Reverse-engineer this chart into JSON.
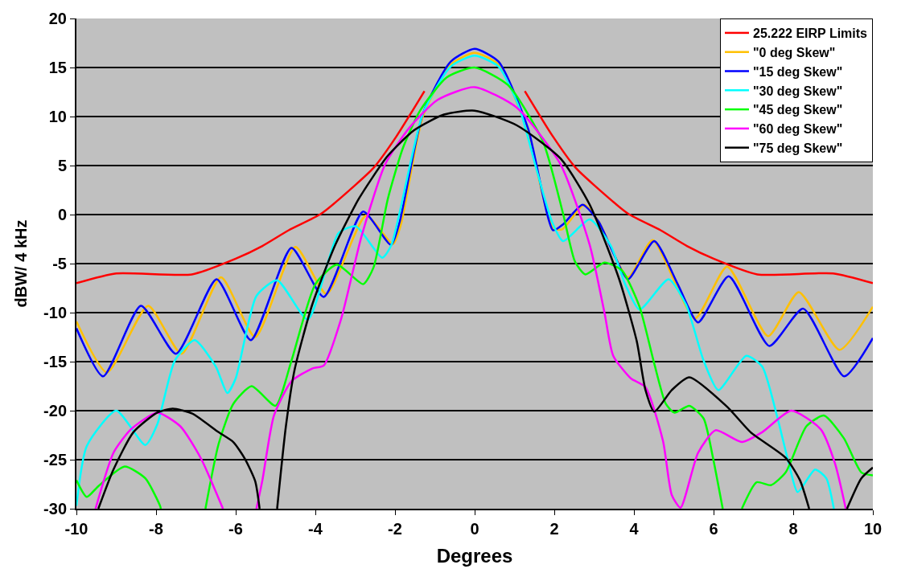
{
  "chart_data": {
    "type": "line",
    "xlabel": "Degrees",
    "ylabel": "dBW/ 4 kHz",
    "xlim": [
      -10,
      10
    ],
    "xticks": [
      -10,
      -8,
      -6,
      -4,
      -2,
      0,
      2,
      4,
      6,
      8,
      10
    ],
    "ylim": [
      -30,
      20
    ],
    "yticks": [
      -30,
      -25,
      -20,
      -15,
      -10,
      -5,
      0,
      5,
      10,
      15,
      20
    ],
    "grid": "y",
    "legend": "top right",
    "marker": "none",
    "line_style": "solid",
    "series": [
      {
        "name": "25.222 EIRP Limits",
        "color": "#ff0000",
        "x": [
          -10,
          -9,
          -7.1,
          -6,
          -5.33,
          -4.67,
          -3.85,
          -3,
          -2.53,
          -1.96,
          -1.26,
          0,
          1.26,
          1.96,
          2.53,
          3,
          3.85,
          4.67,
          5.33,
          6,
          7.1,
          9,
          10
        ],
        "values": [
          -7,
          -6,
          -6.1,
          -4.5,
          -3.2,
          -1.6,
          0.1,
          3.0,
          4.8,
          8.0,
          12.6,
          null,
          12.6,
          8.0,
          4.8,
          3.0,
          0.1,
          -1.6,
          -3.2,
          -4.5,
          -6.1,
          -6,
          -7
        ]
      },
      {
        "name": "\"0 deg Skew\"",
        "color": "#ffc000",
        "x": [
          -10,
          -9.23,
          -8.2,
          -7.36,
          -6.37,
          -5.51,
          -4.5,
          -3.72,
          -2.73,
          -2.05,
          -1.85,
          -1.3,
          -0.6,
          0,
          0.6,
          1.3,
          1.97,
          2.2,
          2.75,
          3.1,
          3.85,
          4.47,
          5.53,
          6.34,
          7.37,
          8.14,
          9.16,
          10
        ],
        "values": [
          -10.9,
          -16.1,
          -9.3,
          -14.2,
          -6.4,
          -12.5,
          -3.3,
          -8.1,
          -0.1,
          -3.0,
          -1.0,
          10.0,
          15.3,
          16.5,
          15.3,
          8.8,
          -1.4,
          -1.5,
          1.0,
          -0.6,
          -6.4,
          -2.6,
          -10.6,
          -5.3,
          -12.4,
          -7.9,
          -13.8,
          -9.4
        ]
      },
      {
        "name": "\"15 deg Skew\"",
        "color": "#0000ff",
        "x": [
          -10,
          -9.33,
          -8.38,
          -7.5,
          -6.48,
          -5.62,
          -4.6,
          -3.79,
          -2.8,
          -2.1,
          -1.88,
          -1.3,
          -0.6,
          0,
          0.6,
          1.34,
          1.97,
          2.22,
          2.71,
          3.11,
          3.48,
          3.85,
          4.51,
          5.1,
          5.61,
          6.38,
          7.4,
          8.25,
          9.28,
          10
        ],
        "values": [
          -11.6,
          -16.5,
          -9.3,
          -14.2,
          -6.6,
          -12.8,
          -3.4,
          -8.4,
          0.3,
          -3.1,
          -0.7,
          10.3,
          15.6,
          16.9,
          15.6,
          8.8,
          -1.6,
          -1.0,
          1.0,
          -0.7,
          -3.9,
          -6.6,
          -2.7,
          -7.1,
          -11.0,
          -6.3,
          -13.4,
          -9.6,
          -16.5,
          -12.6
        ]
      },
      {
        "name": "\"30 deg Skew\"",
        "color": "#00ffff",
        "x": [
          -10,
          -9.74,
          -9,
          -8.27,
          -7.97,
          -7.53,
          -7.03,
          -6.5,
          -6.21,
          -6,
          -5.48,
          -4.96,
          -4.19,
          -3.42,
          -2.98,
          -2.32,
          -2.09,
          -1.3,
          -0.6,
          0,
          0.6,
          1.12,
          1.56,
          1.94,
          2.22,
          2.89,
          3.41,
          3.78,
          4.14,
          4.87,
          5.31,
          5.75,
          6.12,
          6.82,
          7.22,
          7.59,
          7.89,
          8.11,
          8.55,
          8.83,
          9.02
        ],
        "values": [
          -29.7,
          -23.6,
          -20.0,
          -23.5,
          -21.4,
          -14.9,
          -12.8,
          -15.5,
          -18.2,
          -16.7,
          -8.3,
          -6.7,
          -10.7,
          -1.9,
          -1.2,
          -4.4,
          -3.1,
          10.3,
          15.1,
          16.2,
          15.1,
          10.9,
          4.5,
          -0.7,
          -2.7,
          -0.5,
          -3.1,
          -7.1,
          -9.7,
          -6.6,
          -9.2,
          -14.9,
          -17.9,
          -14.4,
          -15.5,
          -20.5,
          -25.4,
          -28.3,
          -26.0,
          -26.9,
          -30
        ]
      },
      {
        "name": "\"45 deg Skew\"",
        "color": "#00ff00",
        "x": [
          -10,
          -9.74,
          -9.45,
          -8.79,
          -8.27,
          -7.9,
          -7.88,
          -7.3,
          -6.76,
          -6.43,
          -6.06,
          -5.6,
          -5.0,
          -4.6,
          -4.0,
          -3.46,
          -2.8,
          -2.54,
          -2.18,
          -1.8,
          -1.37,
          -0.7,
          0,
          0.84,
          1.72,
          2.22,
          2.52,
          2.78,
          3.26,
          3.7,
          4.14,
          4.51,
          4.8,
          5.02,
          5.39,
          5.75,
          5.97,
          6.23,
          6.5,
          6.71,
          7.08,
          7.44,
          7.81,
          8.33,
          8.77,
          9.27,
          9.71,
          10
        ],
        "values": [
          -27.1,
          -28.8,
          -27.7,
          -25.7,
          -26.9,
          -29.7,
          -30,
          null,
          -30,
          -23.4,
          -19.3,
          -17.5,
          -19.5,
          -14.9,
          -7.1,
          -5.1,
          -7.1,
          -5.4,
          1.6,
          6.8,
          10.6,
          14.0,
          15.0,
          13.2,
          7.4,
          0.1,
          -4.8,
          -6.1,
          -4.9,
          -5.7,
          -9.4,
          -15.2,
          -19.3,
          -20.2,
          -19.5,
          -20.8,
          -24.5,
          -30,
          null,
          -30,
          -27.3,
          -27.6,
          -26.3,
          -21.6,
          -20.5,
          -22.8,
          -26.3,
          -26.6
        ]
      },
      {
        "name": "\"60 deg Skew\"",
        "color": "#ff00ff",
        "x": [
          -9.52,
          -9.07,
          -8.63,
          -7.97,
          -7.39,
          -6.87,
          -6.32,
          -5.9,
          -5.48,
          -5.33,
          -5.04,
          -4.6,
          -4.08,
          -3.79,
          -3.35,
          -2.84,
          -2.25,
          -1.65,
          -0.93,
          0,
          1.06,
          2.16,
          2.89,
          3.26,
          3.48,
          3.92,
          4.29,
          4.73,
          4.95,
          5.17,
          5.61,
          6.05,
          6.71,
          7.22,
          7.95,
          8.69,
          9.05,
          9.32
        ],
        "values": [
          -30,
          -24.3,
          -21.9,
          -20.2,
          -21.6,
          -24.9,
          -30,
          null,
          -30,
          -27.1,
          -20.5,
          -17.0,
          -15.7,
          -15.4,
          -10.6,
          -2.2,
          5.1,
          8.8,
          11.7,
          13.0,
          10.9,
          5.1,
          -3.1,
          -10.0,
          -14.4,
          -16.7,
          -17.6,
          -23.1,
          -28.6,
          -29.9,
          -24.3,
          -22.0,
          -23.2,
          -22.2,
          -20.0,
          -21.9,
          -25.4,
          -30
        ]
      },
      {
        "name": "\"75 deg Skew\"",
        "color": "#000000",
        "x": [
          -9.45,
          -9.07,
          -8.57,
          -7.97,
          -7.58,
          -7.09,
          -6.43,
          -6.06,
          -5.77,
          -5.51,
          -5.4,
          -5.2,
          -4.96,
          -4.74,
          -4.52,
          -4.08,
          -3.5,
          -2.91,
          -2.18,
          -1.52,
          -0.77,
          0,
          1.06,
          2.16,
          2.89,
          3.63,
          4.07,
          4.29,
          4.51,
          4.95,
          5.39,
          6.34,
          6.93,
          7.81,
          8.17,
          8.4,
          8.9,
          9.35,
          9.71,
          10
        ],
        "values": [
          -30,
          -26.0,
          -22.2,
          -20.2,
          -19.8,
          -20.3,
          -22.2,
          -23.2,
          -24.9,
          -27.2,
          -30,
          null,
          -30,
          -21.6,
          -15.8,
          -9.2,
          -3.1,
          1.6,
          6.0,
          8.6,
          10.2,
          10.6,
          9.1,
          5.7,
          1.0,
          -6.6,
          -12.9,
          -17.9,
          -20.1,
          -17.9,
          -16.6,
          -19.6,
          -22.2,
          -24.8,
          -27.1,
          -30,
          null,
          -30,
          -26.9,
          -25.8
        ]
      }
    ]
  }
}
